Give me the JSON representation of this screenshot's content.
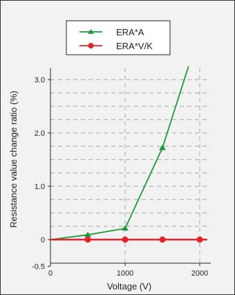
{
  "chart_data": {
    "type": "line",
    "title": "",
    "xlabel": "Voltage (V)",
    "ylabel": "Resistance value change ratio (%)",
    "xlim": [
      0,
      2400
    ],
    "ylim": [
      -0.5,
      3.25
    ],
    "x_ticks": [
      {
        "value": 0,
        "label": "0"
      },
      {
        "value": 1000,
        "label": "1000"
      },
      {
        "value": 2000,
        "label": "2000"
      }
    ],
    "y_ticks": [
      {
        "value": -0.5,
        "label": "-0.5"
      },
      {
        "value": 0,
        "label": "0"
      },
      {
        "value": 1.0,
        "label": "1.0"
      },
      {
        "value": 2.0,
        "label": "2.0"
      },
      {
        "value": 3.0,
        "label": "3.0"
      }
    ],
    "y_grid": [
      0.25,
      0.5,
      0.75,
      1.0,
      1.25,
      1.5,
      1.75,
      2.0,
      2.25,
      2.5,
      2.75,
      3.0
    ],
    "x_grid": [
      1000,
      2000
    ],
    "grid": true,
    "legend_position": "top-center",
    "series": [
      {
        "name": "ERA*A",
        "color": "#1a9a3a",
        "marker": "triangle",
        "x": [
          0,
          500,
          1000,
          1500,
          1850
        ],
        "y": [
          0,
          0.09,
          0.21,
          1.72,
          3.25
        ],
        "marker_x": [
          500,
          1000,
          1500
        ],
        "marker_y": [
          0.09,
          0.21,
          1.72
        ]
      },
      {
        "name": "ERA*V/K",
        "color": "#e8202a",
        "marker": "circle",
        "x": [
          0,
          500,
          1000,
          1500,
          2000,
          2100
        ],
        "y": [
          0,
          0,
          0,
          0,
          0,
          0
        ],
        "marker_x": [
          500,
          1000,
          1500,
          2000
        ],
        "marker_y": [
          0,
          0,
          0,
          0
        ]
      }
    ]
  }
}
